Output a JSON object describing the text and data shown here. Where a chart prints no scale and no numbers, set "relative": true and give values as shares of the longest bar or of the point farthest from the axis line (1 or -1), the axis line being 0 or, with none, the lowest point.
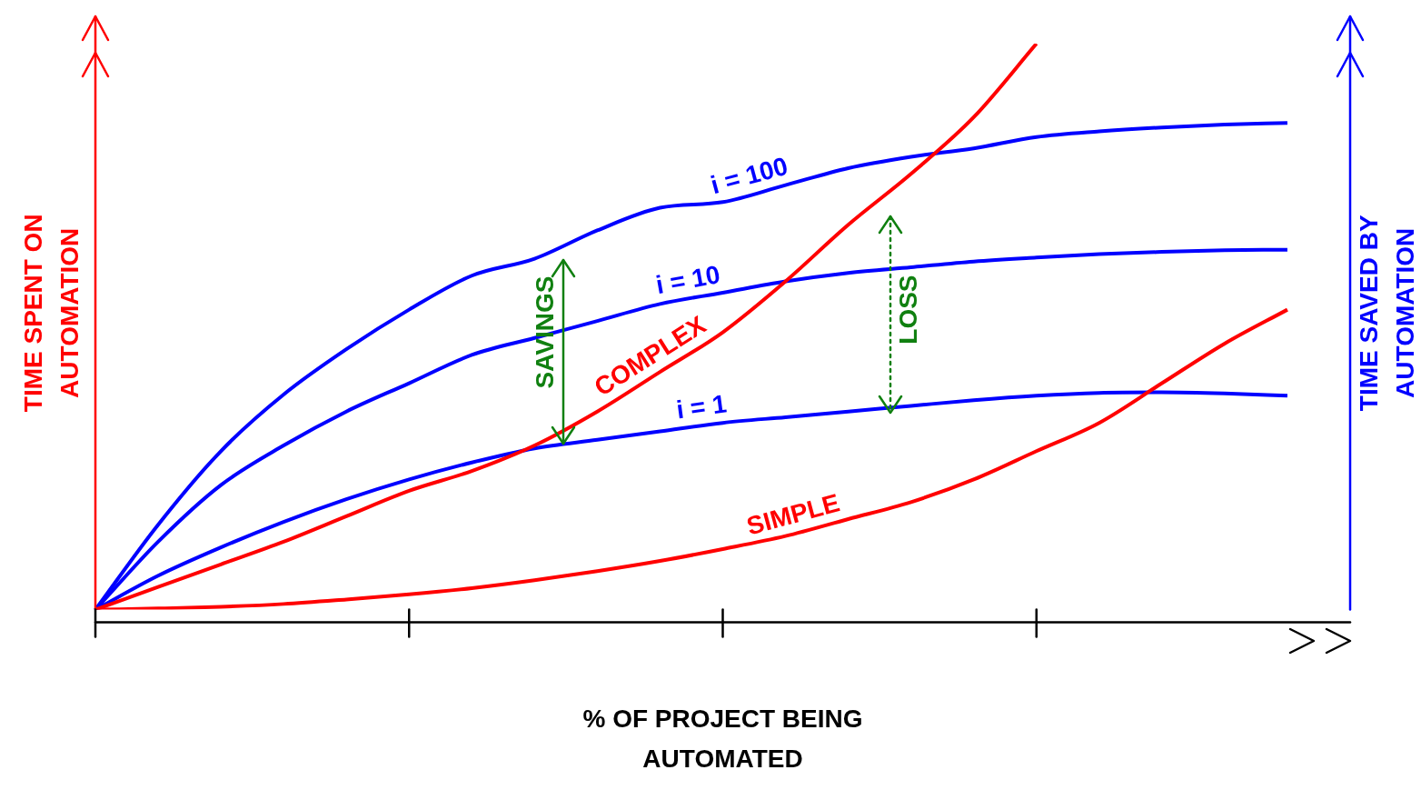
{
  "chart_data": {
    "type": "line",
    "relative": true,
    "xlabel": "% OF PROJECT BEING AUTOMATED",
    "ylabel": "TIME SPENT ON AUTOMATION",
    "y2label": "TIME SAVED BY AUTOMATION",
    "grid": false,
    "legend": false,
    "marker": "none",
    "line_style": "solid",
    "categories": [
      null,
      null,
      null,
      null,
      null,
      null,
      null,
      null,
      null,
      null,
      null,
      null,
      null,
      null,
      null,
      null,
      null,
      null,
      null,
      null,
      null
    ],
    "series": [
      {
        "name": "COMPLEX",
        "color": "#ff0000",
        "values": [
          0,
          0.04,
          0.08,
          0.12,
          0.165,
          0.21,
          0.245,
          0.29,
          0.35,
          0.42,
          0.49,
          0.58,
          0.68,
          0.77,
          0.87,
          1.0,
          null,
          null,
          null,
          null,
          null
        ]
      },
      {
        "name": "SIMPLE",
        "color": "#ff0000",
        "values": [
          0,
          0.002,
          0.005,
          0.01,
          0.018,
          0.027,
          0.038,
          0.052,
          0.068,
          0.086,
          0.107,
          0.13,
          0.16,
          0.19,
          0.23,
          0.28,
          0.33,
          0.4,
          0.47,
          0.53,
          null
        ]
      },
      {
        "name": "i = 100",
        "color": "#0000ff",
        "values": [
          0,
          0.15,
          0.28,
          0.38,
          0.46,
          0.53,
          0.59,
          0.62,
          0.67,
          0.71,
          0.72,
          0.75,
          0.78,
          0.8,
          0.815,
          0.835,
          0.845,
          0.852,
          0.857,
          0.86,
          null
        ]
      },
      {
        "name": "i = 10",
        "color": "#0000ff",
        "values": [
          0,
          0.12,
          0.22,
          0.29,
          0.35,
          0.4,
          0.45,
          0.48,
          0.51,
          0.54,
          0.56,
          0.58,
          0.595,
          0.605,
          0.615,
          0.622,
          0.628,
          0.632,
          0.635,
          0.636,
          null
        ]
      },
      {
        "name": "i = 1",
        "color": "#0000ff",
        "values": [
          0,
          0.06,
          0.11,
          0.155,
          0.195,
          0.23,
          0.26,
          0.285,
          0.3,
          0.315,
          0.33,
          0.34,
          0.35,
          0.36,
          0.37,
          0.378,
          0.383,
          0.384,
          0.382,
          0.378,
          null
        ]
      }
    ],
    "annotations": [
      "SAVINGS",
      "LOSS"
    ]
  }
}
